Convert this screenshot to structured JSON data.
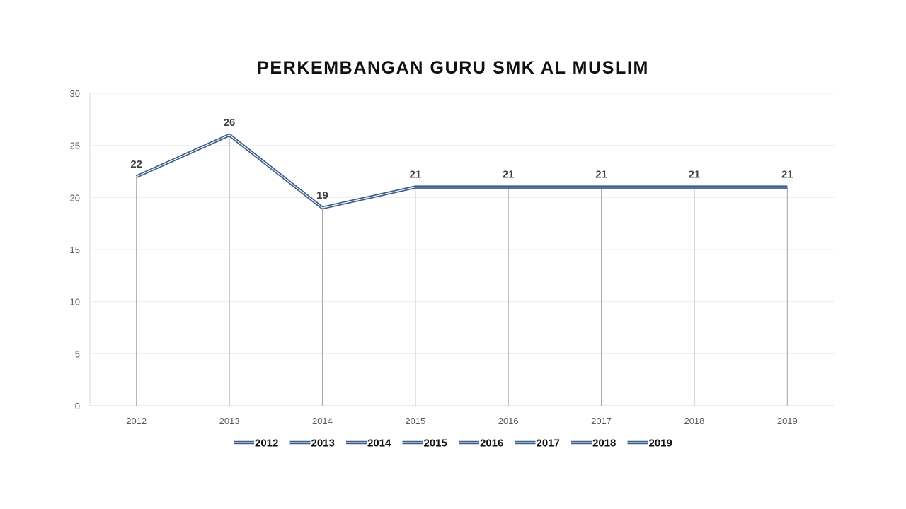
{
  "chart_data": {
    "type": "line",
    "title": "PERKEMBANGAN GURU SMK AL MUSLIM",
    "xlabel": "",
    "ylabel": "",
    "categories": [
      "2012",
      "2013",
      "2014",
      "2015",
      "2016",
      "2017",
      "2018",
      "2019"
    ],
    "values": [
      22,
      26,
      19,
      21,
      21,
      21,
      21,
      21
    ],
    "data_labels": [
      "22",
      "26",
      "19",
      "21",
      "21",
      "21",
      "21",
      "21"
    ],
    "ylim": [
      0,
      30
    ],
    "y_ticks": [
      0,
      5,
      10,
      15,
      20,
      25,
      30
    ],
    "grid": true,
    "drop_lines": true,
    "legend": {
      "placement": "bottom",
      "entries": [
        "2012",
        "2013",
        "2014",
        "2015",
        "2016",
        "2017",
        "2018",
        "2019"
      ]
    },
    "colors": {
      "line": "#3E5F8A",
      "drop_line": "#A6A6A6",
      "grid": "#EDEDED",
      "axis": "#D9D9D9"
    }
  }
}
